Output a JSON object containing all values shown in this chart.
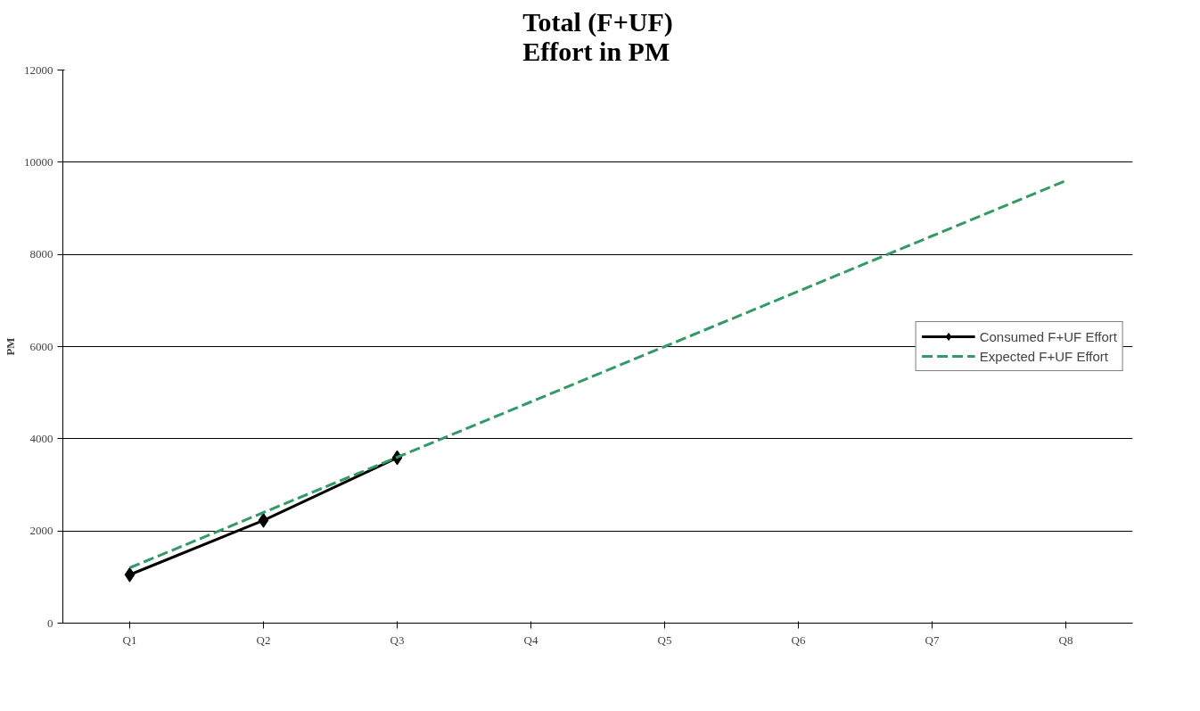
{
  "chart_data": {
    "type": "line",
    "title": "Total (F+UF)\nEffort in PM",
    "ylabel": "PM",
    "categories": [
      "Q1",
      "Q2",
      "Q3",
      "Q4",
      "Q5",
      "Q6",
      "Q7",
      "Q8"
    ],
    "series": [
      {
        "name": "Consumed F+UF Effort",
        "color": "#000000",
        "marker": "diamond",
        "line_style": "solid",
        "values": [
          1050,
          2230,
          3590,
          null,
          null,
          null,
          null,
          null
        ]
      },
      {
        "name": "Expected F+UF Effort",
        "color": "#339966",
        "marker": "none",
        "line_style": "dashed",
        "values": [
          1200,
          2400,
          3600,
          4800,
          6000,
          7200,
          8400,
          9600
        ]
      }
    ],
    "ylim": [
      0,
      12000
    ],
    "yticks": [
      0,
      2000,
      4000,
      6000,
      8000,
      10000,
      12000
    ],
    "grid": "y",
    "legend": "right"
  }
}
